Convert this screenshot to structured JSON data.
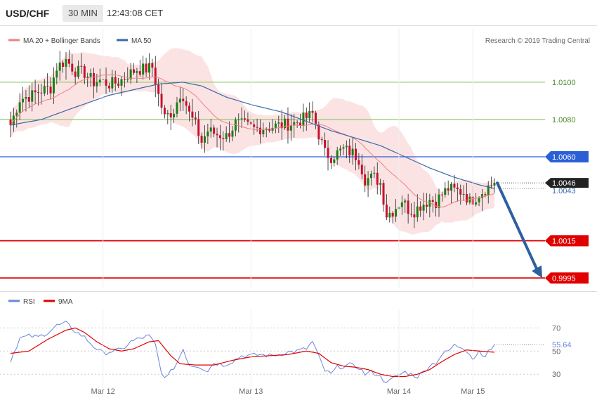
{
  "header": {
    "symbol": "USD/CHF",
    "timeframe": "30 MIN",
    "time": "12:43:08 CET"
  },
  "legend": {
    "bollinger": "MA 20 + Bollinger Bands",
    "ma50": "MA 50",
    "rsi": "RSI",
    "rsi_ma": "9MA"
  },
  "copyright": "Research © 2019 Trading Central",
  "colors": {
    "up": "#1a7f12",
    "down": "#c8102e",
    "band": "#f9c0c0",
    "ma20": "#f08080",
    "ma50": "#3a68a8",
    "green_level": "#8fcc6a",
    "blue_level": "#2a5fd6",
    "red_level": "#e00000",
    "arrow": "#2f5f9f",
    "rsi": "#6a86d8",
    "rsi_ma": "#e00000"
  },
  "chart_data": [
    {
      "type": "candlestick",
      "y_range": [
        0.99895,
        1.0129
      ],
      "x_ticks": [
        {
          "label": "Mar 12",
          "index": 30
        },
        {
          "label": "Mar 13",
          "index": 78
        },
        {
          "label": "Mar 14",
          "index": 126
        },
        {
          "label": "Mar 15",
          "index": 150
        }
      ],
      "levels": [
        {
          "value": 1.01,
          "label": "1.0100",
          "kind": "resistance-green"
        },
        {
          "value": 1.008,
          "label": "1.0080",
          "kind": "resistance-green"
        },
        {
          "value": 1.006,
          "label": "1.0060",
          "kind": "pivot"
        },
        {
          "value": 1.0015,
          "label": "1.0015",
          "kind": "support-red"
        },
        {
          "value": 0.9995,
          "label": "0.9995",
          "kind": "support-red"
        }
      ],
      "last_price": {
        "value": 1.0046,
        "label": "1.0046"
      },
      "ma50_last": {
        "value": 1.0043,
        "label": "1.0043"
      },
      "target_arrow": {
        "from": 1.0046,
        "to": 0.9995
      },
      "anchors": [
        [
          0,
          1.0077
        ],
        [
          3,
          1.0091
        ],
        [
          7,
          1.0093
        ],
        [
          9,
          1.0095
        ],
        [
          13,
          1.0097
        ],
        [
          15,
          1.0108
        ],
        [
          18,
          1.0112
        ],
        [
          21,
          1.0106
        ],
        [
          24,
          1.0105
        ],
        [
          27,
          1.01
        ],
        [
          29,
          1.0101
        ],
        [
          32,
          1.0099
        ],
        [
          35,
          1.01
        ],
        [
          38,
          1.0104
        ],
        [
          41,
          1.0107
        ],
        [
          44,
          1.0107
        ],
        [
          46,
          1.0108
        ],
        [
          48,
          1.0093
        ],
        [
          50,
          1.0081
        ],
        [
          53,
          1.0085
        ],
        [
          55,
          1.0094
        ],
        [
          56,
          1.0093
        ],
        [
          58,
          1.0083
        ],
        [
          60,
          1.0077
        ],
        [
          62,
          1.0068
        ],
        [
          64,
          1.0074
        ],
        [
          67,
          1.0072
        ],
        [
          70,
          1.0071
        ],
        [
          73,
          1.0078
        ],
        [
          76,
          1.0077
        ],
        [
          79,
          1.0075
        ],
        [
          84,
          1.0076
        ],
        [
          88,
          1.0077
        ],
        [
          92,
          1.0078
        ],
        [
          96,
          1.0081
        ],
        [
          98,
          1.0083
        ],
        [
          100,
          1.0072
        ],
        [
          102,
          1.0062
        ],
        [
          104,
          1.006
        ],
        [
          108,
          1.0064
        ],
        [
          111,
          1.0062
        ],
        [
          113,
          1.0059
        ],
        [
          115,
          1.0048
        ],
        [
          118,
          1.0049
        ],
        [
          120,
          1.0046
        ],
        [
          122,
          1.0029
        ],
        [
          124,
          1.0031
        ],
        [
          127,
          1.0037
        ],
        [
          129,
          1.0032
        ],
        [
          131,
          1.0031
        ],
        [
          133,
          1.0034
        ],
        [
          136,
          1.0037
        ],
        [
          138,
          1.0036
        ],
        [
          140,
          1.004
        ],
        [
          142,
          1.0043
        ],
        [
          144,
          1.0042
        ],
        [
          147,
          1.0041
        ],
        [
          149,
          1.0036
        ],
        [
          152,
          1.004
        ],
        [
          155,
          1.0044
        ],
        [
          157,
          1.0046
        ]
      ],
      "ma50_anchors": [
        [
          0,
          1.0077
        ],
        [
          10,
          1.008
        ],
        [
          20,
          1.0086
        ],
        [
          32,
          1.0093
        ],
        [
          40,
          1.0096
        ],
        [
          48,
          1.0099
        ],
        [
          56,
          1.01
        ],
        [
          62,
          1.0098
        ],
        [
          70,
          1.0092
        ],
        [
          78,
          1.0088
        ],
        [
          88,
          1.0084
        ],
        [
          96,
          1.0079
        ],
        [
          104,
          1.0074
        ],
        [
          112,
          1.007
        ],
        [
          120,
          1.0066
        ],
        [
          128,
          1.006
        ],
        [
          136,
          1.0054
        ],
        [
          144,
          1.0049
        ],
        [
          152,
          1.0045
        ],
        [
          157,
          1.0043
        ]
      ]
    },
    {
      "type": "line",
      "y_range": [
        18,
        86
      ],
      "y_ticks": [
        30,
        50,
        70
      ],
      "last_rsi": {
        "value": 55.64,
        "label": "55.64"
      },
      "rsi_anchors": [
        [
          0,
          42
        ],
        [
          3,
          61
        ],
        [
          6,
          63
        ],
        [
          9,
          62
        ],
        [
          12,
          66
        ],
        [
          15,
          72
        ],
        [
          18,
          74
        ],
        [
          21,
          67
        ],
        [
          24,
          62
        ],
        [
          27,
          54
        ],
        [
          30,
          48
        ],
        [
          33,
          50
        ],
        [
          36,
          51
        ],
        [
          39,
          58
        ],
        [
          42,
          61
        ],
        [
          45,
          63
        ],
        [
          47,
          55
        ],
        [
          49,
          30
        ],
        [
          51,
          28
        ],
        [
          54,
          40
        ],
        [
          56,
          52
        ],
        [
          58,
          38
        ],
        [
          61,
          37
        ],
        [
          64,
          33
        ],
        [
          66,
          40
        ],
        [
          69,
          38
        ],
        [
          72,
          41
        ],
        [
          75,
          46
        ],
        [
          78,
          46
        ],
        [
          81,
          47
        ],
        [
          84,
          46
        ],
        [
          87,
          47
        ],
        [
          90,
          49
        ],
        [
          93,
          50
        ],
        [
          96,
          52
        ],
        [
          98,
          58
        ],
        [
          100,
          45
        ],
        [
          102,
          33
        ],
        [
          104,
          30
        ],
        [
          106,
          36
        ],
        [
          110,
          38
        ],
        [
          113,
          36
        ],
        [
          115,
          30
        ],
        [
          117,
          32
        ],
        [
          119,
          30
        ],
        [
          121,
          25
        ],
        [
          123,
          24
        ],
        [
          125,
          28
        ],
        [
          128,
          32
        ],
        [
          130,
          30
        ],
        [
          132,
          28
        ],
        [
          134,
          32
        ],
        [
          136,
          38
        ],
        [
          138,
          40
        ],
        [
          140,
          47
        ],
        [
          142,
          50
        ],
        [
          144,
          55
        ],
        [
          147,
          53
        ],
        [
          149,
          48
        ],
        [
          150,
          43
        ],
        [
          152,
          50
        ],
        [
          154,
          46
        ],
        [
          156,
          52
        ],
        [
          157,
          55.64
        ]
      ],
      "ma_anchors": [
        [
          0,
          48
        ],
        [
          6,
          50
        ],
        [
          12,
          60
        ],
        [
          18,
          68
        ],
        [
          21,
          70
        ],
        [
          24,
          66
        ],
        [
          28,
          58
        ],
        [
          32,
          52
        ],
        [
          36,
          50
        ],
        [
          40,
          52
        ],
        [
          45,
          58
        ],
        [
          48,
          59
        ],
        [
          52,
          46
        ],
        [
          55,
          39
        ],
        [
          60,
          38
        ],
        [
          66,
          38
        ],
        [
          72,
          42
        ],
        [
          78,
          45
        ],
        [
          84,
          46
        ],
        [
          90,
          47
        ],
        [
          96,
          50
        ],
        [
          100,
          48
        ],
        [
          104,
          40
        ],
        [
          108,
          37
        ],
        [
          112,
          36
        ],
        [
          116,
          34
        ],
        [
          120,
          30
        ],
        [
          124,
          28
        ],
        [
          128,
          28
        ],
        [
          132,
          30
        ],
        [
          136,
          34
        ],
        [
          140,
          41
        ],
        [
          144,
          47
        ],
        [
          148,
          51
        ],
        [
          152,
          50
        ],
        [
          157,
          49
        ]
      ]
    }
  ]
}
